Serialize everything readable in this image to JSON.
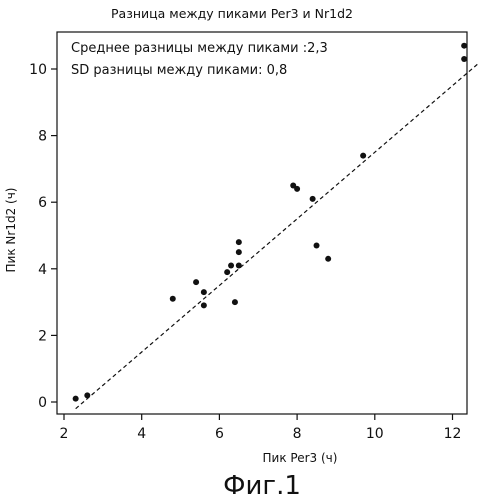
{
  "chart_data": {
    "type": "scatter",
    "title": "Разница между пиками Per3  и  Nr1d2",
    "xlabel": "Пик Per3 (ч)",
    "ylabel": "Пик Nr1d2 (ч)",
    "xlim": [
      2,
      12.7
    ],
    "ylim": [
      -0.3,
      11.2
    ],
    "xticks": [
      2,
      4,
      6,
      8,
      10,
      12
    ],
    "yticks": [
      0,
      2,
      4,
      6,
      8,
      10
    ],
    "grid": false,
    "annotations": [
      "Среднее разницы между пиками :2,3",
      "SD разницы между пиками: 0,8"
    ],
    "trendline": {
      "style": "dashed",
      "from": [
        2.3,
        -0.2
      ],
      "to": [
        12.7,
        10.2
      ]
    },
    "points": [
      {
        "x": 2.3,
        "y": 0.1
      },
      {
        "x": 2.6,
        "y": 0.2
      },
      {
        "x": 4.8,
        "y": 3.1
      },
      {
        "x": 5.4,
        "y": 3.6
      },
      {
        "x": 5.6,
        "y": 3.3
      },
      {
        "x": 5.6,
        "y": 2.9
      },
      {
        "x": 6.2,
        "y": 3.9
      },
      {
        "x": 6.3,
        "y": 4.1
      },
      {
        "x": 6.4,
        "y": 3.0
      },
      {
        "x": 6.5,
        "y": 4.1
      },
      {
        "x": 6.5,
        "y": 4.5
      },
      {
        "x": 6.5,
        "y": 4.8
      },
      {
        "x": 7.9,
        "y": 6.5
      },
      {
        "x": 8.0,
        "y": 6.4
      },
      {
        "x": 8.4,
        "y": 6.1
      },
      {
        "x": 8.5,
        "y": 4.7
      },
      {
        "x": 8.8,
        "y": 4.3
      },
      {
        "x": 9.7,
        "y": 7.4
      },
      {
        "x": 12.3,
        "y": 10.7
      },
      {
        "x": 12.3,
        "y": 10.3
      }
    ]
  },
  "caption": "Фиг.1"
}
